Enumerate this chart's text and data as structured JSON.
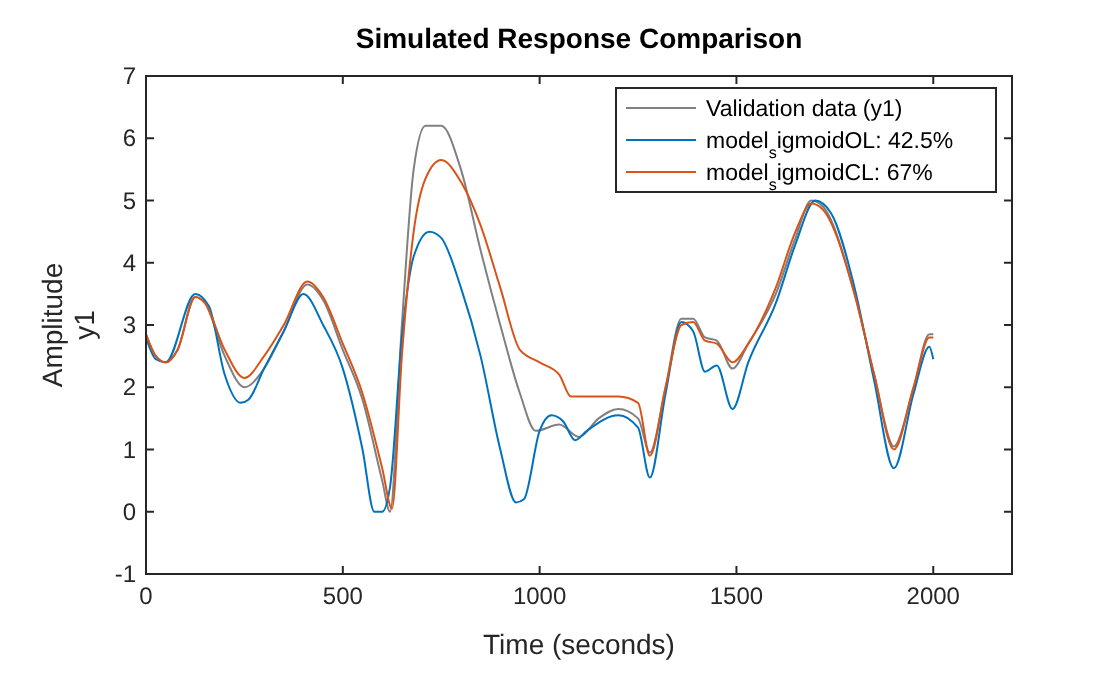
{
  "chart_data": {
    "type": "line",
    "title": "Simulated Response Comparison",
    "xlabel": "Time (seconds)",
    "ylabel": "Amplitude\ny1",
    "xlim": [
      0,
      2200
    ],
    "xticks": [
      0,
      500,
      1000,
      1500,
      2000
    ],
    "ylim": [
      -1,
      7
    ],
    "yticks": [
      -1,
      0,
      1,
      2,
      3,
      4,
      5,
      6,
      7
    ],
    "legend": "top right",
    "grid": false,
    "series": [
      {
        "name": "Validation data (y1)",
        "color": "#808080",
        "x": [
          0,
          25,
          50,
          80,
          125,
          150,
          200,
          250,
          300,
          350,
          410,
          450,
          500,
          550,
          600,
          620,
          650,
          680,
          710,
          750,
          800,
          850,
          900,
          950,
          990,
          1050,
          1100,
          1150,
          1200,
          1250,
          1280,
          1320,
          1360,
          1390,
          1420,
          1450,
          1490,
          1530,
          1600,
          1650,
          1690,
          1720,
          1800,
          1850,
          1900,
          1950,
          1990,
          2000
        ],
        "values": [
          2.85,
          2.5,
          2.4,
          2.6,
          3.45,
          3.35,
          2.5,
          2.0,
          2.3,
          2.9,
          3.65,
          3.4,
          2.6,
          1.8,
          0.5,
          0.0,
          3.0,
          5.5,
          6.2,
          6.2,
          5.5,
          4.2,
          3.0,
          1.9,
          1.3,
          1.4,
          1.2,
          1.5,
          1.65,
          1.5,
          0.95,
          2.0,
          3.1,
          3.1,
          2.8,
          2.75,
          2.3,
          2.7,
          3.5,
          4.4,
          5.0,
          4.9,
          3.5,
          2.2,
          1.05,
          2.0,
          2.85,
          2.85
        ]
      },
      {
        "name": "model$_{s}$igmoidOL: 42.5%",
        "color": "#0072bd",
        "x": [
          0,
          25,
          50,
          125,
          160,
          200,
          240,
          260,
          300,
          350,
          400,
          450,
          500,
          550,
          580,
          600,
          620,
          650,
          680,
          720,
          750,
          800,
          850,
          900,
          940,
          960,
          1000,
          1030,
          1060,
          1090,
          1120,
          1200,
          1250,
          1280,
          1320,
          1360,
          1390,
          1420,
          1450,
          1490,
          1530,
          1600,
          1650,
          1700,
          1740,
          1800,
          1850,
          1900,
          1950,
          1990,
          2000
        ],
        "values": [
          2.8,
          2.45,
          2.4,
          3.5,
          3.3,
          2.2,
          1.75,
          1.8,
          2.3,
          2.9,
          3.5,
          3.0,
          2.3,
          1.0,
          0.0,
          0.0,
          0.4,
          2.8,
          4.1,
          4.5,
          4.4,
          3.6,
          2.5,
          1.0,
          0.15,
          0.2,
          1.3,
          1.55,
          1.45,
          1.15,
          1.3,
          1.55,
          1.35,
          0.55,
          1.9,
          3.05,
          2.9,
          2.25,
          2.35,
          1.65,
          2.4,
          3.35,
          4.3,
          5.0,
          4.8,
          3.6,
          2.1,
          0.7,
          1.9,
          2.65,
          2.45
        ]
      },
      {
        "name": "model$_{s}$igmoidCL: 67%",
        "color": "#d95319",
        "x": [
          0,
          25,
          50,
          80,
          125,
          150,
          200,
          250,
          300,
          350,
          410,
          450,
          500,
          550,
          600,
          625,
          650,
          680,
          710,
          750,
          800,
          850,
          900,
          950,
          1000,
          1050,
          1080,
          1150,
          1200,
          1250,
          1280,
          1320,
          1360,
          1390,
          1420,
          1450,
          1490,
          1530,
          1600,
          1650,
          1690,
          1720,
          1800,
          1850,
          1900,
          1950,
          1990,
          2000
        ],
        "values": [
          2.85,
          2.5,
          2.4,
          2.6,
          3.45,
          3.35,
          2.6,
          2.15,
          2.5,
          3.0,
          3.7,
          3.45,
          2.7,
          1.9,
          0.7,
          0.05,
          2.5,
          4.5,
          5.35,
          5.65,
          5.3,
          4.6,
          3.6,
          2.6,
          2.4,
          2.2,
          1.85,
          1.85,
          1.85,
          1.75,
          0.9,
          2.0,
          3.0,
          3.05,
          2.75,
          2.7,
          2.4,
          2.7,
          3.6,
          4.5,
          4.95,
          4.85,
          3.5,
          2.2,
          1.0,
          2.0,
          2.8,
          2.8
        ]
      }
    ]
  }
}
